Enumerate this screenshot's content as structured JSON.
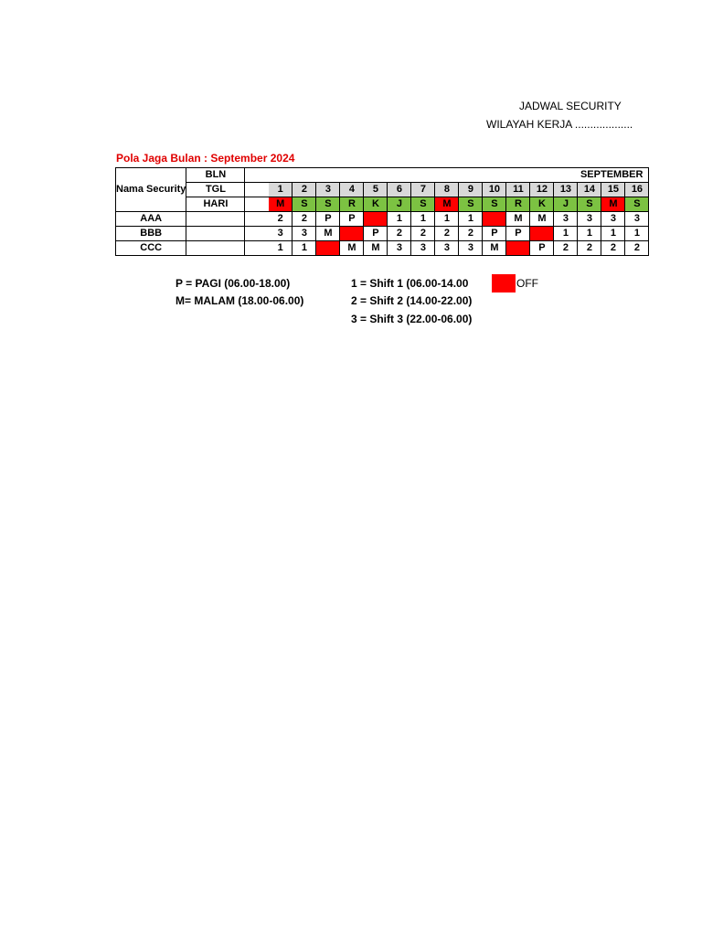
{
  "header": {
    "title": "JADWAL SECURITY",
    "region": "WILAYAH KERJA ..................."
  },
  "pola": "Pola Jaga Bulan : September 2024",
  "table": {
    "nama_label": "Nama Security",
    "bln_label": "BLN",
    "tgl_label": "TGL",
    "hari_label": "HARI",
    "month": "SEPTEMBER",
    "dates": [
      "1",
      "2",
      "3",
      "4",
      "5",
      "6",
      "7",
      "8",
      "9",
      "10",
      "11",
      "12",
      "13",
      "14",
      "15",
      "16"
    ],
    "days": [
      "M",
      "S",
      "S",
      "R",
      "K",
      "J",
      "S",
      "M",
      "S",
      "S",
      "R",
      "K",
      "J",
      "S",
      "M",
      "S"
    ],
    "day_colors": [
      "red",
      "green",
      "green",
      "green",
      "green",
      "green",
      "green",
      "red",
      "green",
      "green",
      "green",
      "green",
      "green",
      "green",
      "red",
      "green"
    ],
    "rows": [
      {
        "name": "AAA",
        "shifts": [
          "2",
          "2",
          "P",
          "P",
          "",
          "1",
          "1",
          "1",
          "1",
          "",
          "M",
          "M",
          "3",
          "3",
          "3",
          "3"
        ],
        "off": [
          false,
          false,
          false,
          false,
          true,
          false,
          false,
          false,
          false,
          true,
          false,
          false,
          false,
          false,
          false,
          false
        ]
      },
      {
        "name": "BBB",
        "shifts": [
          "3",
          "3",
          "M",
          "",
          "P",
          "2",
          "2",
          "2",
          "2",
          "P",
          "P",
          "",
          "1",
          "1",
          "1",
          "1"
        ],
        "off": [
          false,
          false,
          false,
          true,
          false,
          false,
          false,
          false,
          false,
          false,
          false,
          true,
          false,
          false,
          false,
          false
        ]
      },
      {
        "name": "CCC",
        "shifts": [
          "1",
          "1",
          "",
          "M",
          "M",
          "3",
          "3",
          "3",
          "3",
          "M",
          "",
          "P",
          "2",
          "2",
          "2",
          "2"
        ],
        "off": [
          false,
          false,
          true,
          false,
          false,
          false,
          false,
          false,
          false,
          false,
          true,
          false,
          false,
          false,
          false,
          false
        ]
      }
    ]
  },
  "legend": {
    "pagi": "P = PAGI (06.00-18.00)",
    "malam": "M= MALAM (18.00-06.00)",
    "shift1": "1 = Shift 1 (06.00-14.00",
    "shift2": "2 = Shift 2 (14.00-22.00)",
    "shift3": "3 = Shift 3 (22.00-06.00)",
    "off": "OFF"
  },
  "colors": {
    "title_red": "#e00000",
    "off_red": "#ff0000",
    "day_green": "#7cc242",
    "tgl_gray": "#d9d9d9"
  }
}
